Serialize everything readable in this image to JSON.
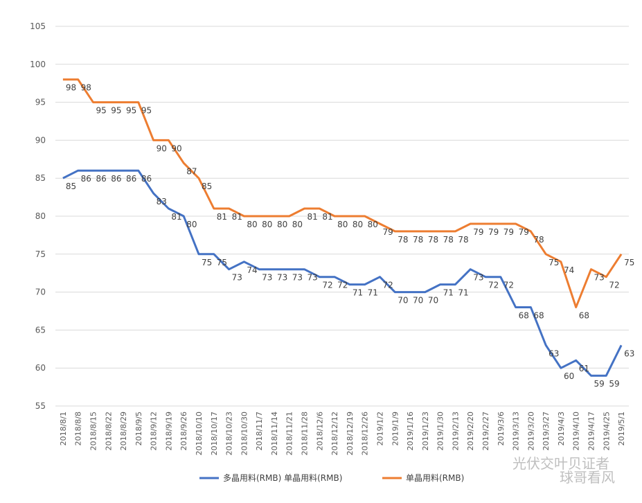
{
  "chart_data": {
    "type": "line",
    "categories": [
      "2018/8/1",
      "2018/8/8",
      "2018/8/15",
      "2018/8/22",
      "2018/8/29",
      "2018/9/5",
      "2018/9/12",
      "2018/9/19",
      "2018/9/26",
      "2018/10/10",
      "2018/10/17",
      "2018/10/23",
      "2018/10/30",
      "2018/11/7",
      "2018/11/14",
      "2018/11/21",
      "2018/11/28",
      "2018/12/6",
      "2018/12/12",
      "2018/12/19",
      "2018/12/26",
      "2019/1/2",
      "2019/1/9",
      "2019/1/16",
      "2019/1/23",
      "2019/1/30",
      "2019/2/13",
      "2019/2/20",
      "2019/2/27",
      "2019/3/6",
      "2019/3/13",
      "2019/3/20",
      "2019/3/27",
      "2019/4/3",
      "2019/4/10",
      "2019/4/17",
      "2019/4/25",
      "2019/5/1"
    ],
    "series": [
      {
        "name": "多晶用料(RMB) 单晶用料(RMB)",
        "color": "#4472c4",
        "values": [
          85,
          86,
          86,
          86,
          86,
          86,
          83,
          81,
          80,
          75,
          75,
          73,
          74,
          73,
          73,
          73,
          73,
          72,
          72,
          71,
          71,
          72,
          70,
          70,
          70,
          71,
          71,
          73,
          72,
          72,
          68,
          68,
          63,
          60,
          61,
          59,
          59,
          63
        ]
      },
      {
        "name": "单晶用料(RMB)",
        "color": "#ed7d31",
        "values": [
          98,
          98,
          95,
          95,
          95,
          95,
          90,
          90,
          87,
          85,
          81,
          81,
          80,
          80,
          80,
          80,
          81,
          81,
          80,
          80,
          80,
          79,
          78,
          78,
          78,
          78,
          78,
          79,
          79,
          79,
          79,
          78,
          75,
          74,
          68,
          73,
          72,
          75
        ]
      }
    ],
    "ylim": [
      55,
      105
    ],
    "yticks": [
      55,
      60,
      65,
      70,
      75,
      80,
      85,
      90,
      95,
      100,
      105
    ],
    "grid": true,
    "legend_position": "bottom"
  },
  "watermark": {
    "line1": "光伏交叶贝证者",
    "line2": "球哥看风"
  }
}
